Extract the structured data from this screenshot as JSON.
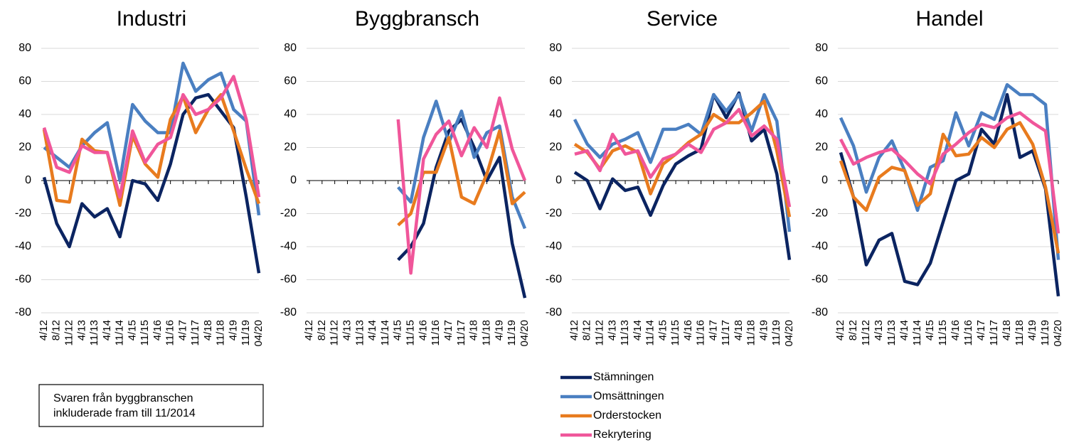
{
  "chart_data": [
    {
      "type": "line",
      "title": "Industri",
      "categories": [
        "4/12",
        "8/12",
        "11/12",
        "4/13",
        "11/13",
        "4/14",
        "11/14",
        "4/15",
        "11/15",
        "4/16",
        "11/16",
        "4/17",
        "11/17",
        "4/18",
        "11/18",
        "4/19",
        "11/19",
        "04/20"
      ],
      "ylim": [
        -80,
        80
      ],
      "yticks": [
        -80,
        -60,
        -40,
        -20,
        0,
        20,
        40,
        60,
        80
      ],
      "grid": true,
      "annotation": [
        "Svaren från byggbranschen",
        "inkluderade fram till 11/2014"
      ],
      "series": [
        {
          "name": "Stämningen",
          "color": "#0b2461",
          "values": [
            2,
            -26,
            -40,
            -14,
            -22,
            -17,
            -34,
            0,
            -2,
            -12,
            10,
            40,
            50,
            52,
            42,
            32,
            -10,
            -56
          ]
        },
        {
          "name": "Omsättningen",
          "color": "#4a7fc1",
          "values": [
            20,
            14,
            8,
            21,
            29,
            35,
            0,
            46,
            36,
            29,
            29,
            71,
            54,
            61,
            65,
            43,
            36,
            -21
          ]
        },
        {
          "name": "Orderstocken",
          "color": "#e87b1e",
          "values": [
            31,
            -12,
            -13,
            25,
            18,
            17,
            -15,
            27,
            10,
            2,
            37,
            51,
            29,
            43,
            52,
            30,
            7,
            -14
          ]
        },
        {
          "name": "Rekrytering",
          "color": "#f0569a",
          "values": [
            32,
            8,
            5,
            21,
            17,
            17,
            -10,
            30,
            11,
            22,
            26,
            52,
            40,
            43,
            50,
            63,
            37,
            -10
          ]
        }
      ]
    },
    {
      "type": "line",
      "title": "Byggbransch",
      "categories": [
        "4/12",
        "8/12",
        "11/12",
        "4/13",
        "11/13",
        "4/14",
        "11/14",
        "4/15",
        "11/15",
        "4/16",
        "11/16",
        "4/17",
        "11/17",
        "4/18",
        "11/18",
        "4/19",
        "11/19",
        "04/20"
      ],
      "ylim": [
        -80,
        80
      ],
      "yticks": [
        -80,
        -60,
        -40,
        -20,
        0,
        20,
        40,
        60,
        80
      ],
      "grid": true,
      "series": [
        {
          "name": "Stämningen",
          "color": "#0b2461",
          "values": [
            null,
            null,
            null,
            null,
            null,
            null,
            null,
            -48,
            -40,
            -26,
            8,
            30,
            37,
            20,
            0,
            14,
            -38,
            -71
          ]
        },
        {
          "name": "Omsättningen",
          "color": "#4a7fc1",
          "values": [
            null,
            null,
            null,
            null,
            null,
            null,
            null,
            -4,
            -13,
            26,
            48,
            23,
            42,
            14,
            29,
            33,
            -10,
            -29
          ]
        },
        {
          "name": "Orderstocken",
          "color": "#e87b1e",
          "values": [
            null,
            null,
            null,
            null,
            null,
            null,
            null,
            -27,
            -20,
            5,
            5,
            26,
            -10,
            -14,
            4,
            30,
            -14,
            -7
          ]
        },
        {
          "name": "Rekrytering",
          "color": "#f0569a",
          "values": [
            null,
            null,
            null,
            null,
            null,
            null,
            null,
            37,
            -56,
            13,
            28,
            36,
            15,
            32,
            20,
            50,
            19,
            0
          ]
        }
      ]
    },
    {
      "type": "line",
      "title": "Service",
      "categories": [
        "4/12",
        "8/12",
        "11/12",
        "4/13",
        "11/13",
        "4/14",
        "11/14",
        "4/15",
        "11/15",
        "4/16",
        "11/16",
        "4/17",
        "11/17",
        "4/18",
        "11/18",
        "4/19",
        "11/19",
        "04/20"
      ],
      "ylim": [
        -80,
        80
      ],
      "yticks": [
        -80,
        -60,
        -40,
        -20,
        0,
        20,
        40,
        60,
        80
      ],
      "grid": true,
      "legend": "below",
      "series": [
        {
          "name": "Stämningen",
          "color": "#0b2461",
          "values": [
            5,
            0,
            -17,
            1,
            -6,
            -4,
            -21,
            -3,
            10,
            15,
            19,
            52,
            38,
            53,
            24,
            31,
            4,
            -48
          ]
        },
        {
          "name": "Omsättningen",
          "color": "#4a7fc1",
          "values": [
            37,
            22,
            14,
            22,
            25,
            29,
            11,
            31,
            31,
            34,
            28,
            52,
            42,
            52,
            30,
            52,
            36,
            -31
          ]
        },
        {
          "name": "Orderstocken",
          "color": "#e87b1e",
          "values": [
            22,
            17,
            7,
            18,
            21,
            17,
            -8,
            10,
            16,
            23,
            28,
            40,
            35,
            35,
            41,
            48,
            18,
            -22
          ]
        },
        {
          "name": "Rekrytering",
          "color": "#f0569a",
          "values": [
            16,
            18,
            6,
            28,
            16,
            18,
            2,
            13,
            16,
            22,
            17,
            31,
            35,
            43,
            27,
            33,
            25,
            -16
          ]
        }
      ]
    },
    {
      "type": "line",
      "title": "Handel",
      "categories": [
        "4/12",
        "8/12",
        "11/12",
        "4/13",
        "11/13",
        "4/14",
        "11/14",
        "4/15",
        "11/15",
        "4/16",
        "11/16",
        "4/17",
        "11/17",
        "4/18",
        "11/18",
        "4/19",
        "11/19",
        "04/20"
      ],
      "ylim": [
        -80,
        80
      ],
      "yticks": [
        -80,
        -60,
        -40,
        -20,
        0,
        20,
        40,
        60,
        80
      ],
      "grid": true,
      "series": [
        {
          "name": "Stämningen",
          "color": "#0b2461",
          "values": [
            17,
            -10,
            -51,
            -36,
            -32,
            -61,
            -63,
            -50,
            -25,
            0,
            4,
            31,
            22,
            52,
            14,
            18,
            -5,
            -70
          ]
        },
        {
          "name": "Omsättningen",
          "color": "#4a7fc1",
          "values": [
            38,
            21,
            -7,
            14,
            24,
            6,
            -18,
            8,
            12,
            41,
            21,
            41,
            37,
            58,
            52,
            52,
            46,
            -48
          ]
        },
        {
          "name": "Orderstocken",
          "color": "#e87b1e",
          "values": [
            12,
            -10,
            -18,
            2,
            8,
            6,
            -15,
            -8,
            28,
            15,
            16,
            26,
            20,
            31,
            35,
            22,
            -4,
            -44
          ]
        },
        {
          "name": "Rekrytering",
          "color": "#f0569a",
          "values": [
            25,
            10,
            14,
            17,
            19,
            12,
            4,
            -2,
            16,
            22,
            29,
            34,
            32,
            38,
            41,
            35,
            30,
            -32
          ]
        }
      ]
    }
  ]
}
